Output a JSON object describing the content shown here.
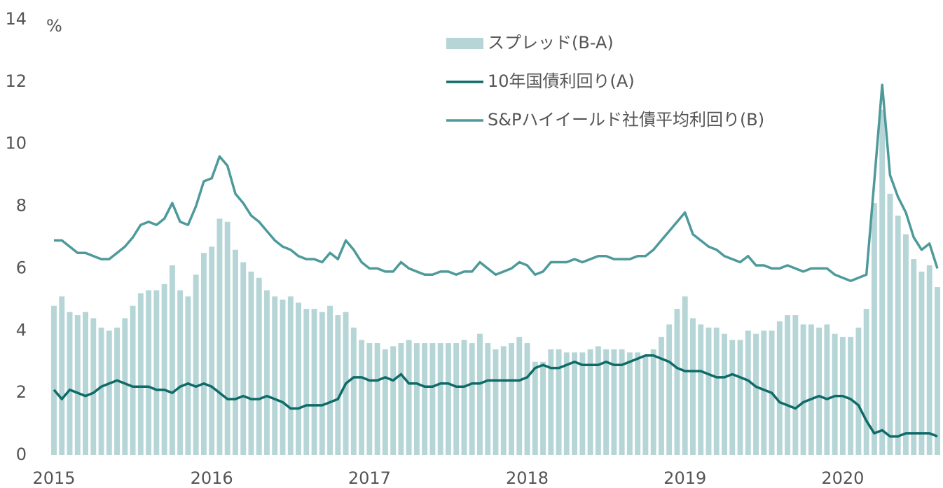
{
  "chart_data": {
    "type": "line",
    "y_label": "%",
    "x": [
      2015,
      2015.05,
      2015.1,
      2015.15,
      2015.2,
      2015.25,
      2015.3,
      2015.35,
      2015.4,
      2015.45,
      2015.5,
      2015.55,
      2015.6,
      2015.65,
      2015.7,
      2015.75,
      2015.8,
      2015.85,
      2015.9,
      2015.95,
      2016,
      2016.05,
      2016.1,
      2016.15,
      2016.2,
      2016.25,
      2016.3,
      2016.35,
      2016.4,
      2016.45,
      2016.5,
      2016.55,
      2016.6,
      2016.65,
      2016.7,
      2016.75,
      2016.8,
      2016.85,
      2016.9,
      2016.95,
      2017,
      2017.05,
      2017.1,
      2017.15,
      2017.2,
      2017.25,
      2017.3,
      2017.35,
      2017.4,
      2017.45,
      2017.5,
      2017.55,
      2017.6,
      2017.65,
      2017.7,
      2017.75,
      2017.8,
      2017.85,
      2017.9,
      2017.95,
      2018,
      2018.05,
      2018.1,
      2018.15,
      2018.2,
      2018.25,
      2018.3,
      2018.35,
      2018.4,
      2018.45,
      2018.5,
      2018.55,
      2018.6,
      2018.65,
      2018.7,
      2018.75,
      2018.8,
      2018.85,
      2018.9,
      2018.95,
      2019,
      2019.05,
      2019.1,
      2019.15,
      2019.2,
      2019.25,
      2019.3,
      2019.35,
      2019.4,
      2019.45,
      2019.5,
      2019.55,
      2019.6,
      2019.65,
      2019.7,
      2019.75,
      2019.8,
      2019.85,
      2019.9,
      2019.95,
      2020,
      2020.05,
      2020.1,
      2020.15,
      2020.2,
      2020.25,
      2020.3,
      2020.35,
      2020.4,
      2020.45,
      2020.5,
      2020.55,
      2020.6
    ],
    "series": [
      {
        "name": "スプレッド(B-A)",
        "color": "#b5d5d6",
        "kind": "bar",
        "values": [
          4.8,
          5.1,
          4.6,
          4.5,
          4.6,
          4.4,
          4.1,
          4.0,
          4.1,
          4.4,
          4.8,
          5.2,
          5.3,
          5.3,
          5.5,
          6.1,
          5.3,
          5.1,
          5.8,
          6.5,
          6.7,
          7.6,
          7.5,
          6.6,
          6.2,
          5.9,
          5.7,
          5.3,
          5.1,
          5.0,
          5.1,
          4.9,
          4.7,
          4.7,
          4.6,
          4.8,
          4.5,
          4.6,
          4.1,
          3.7,
          3.6,
          3.6,
          3.4,
          3.5,
          3.6,
          3.7,
          3.6,
          3.6,
          3.6,
          3.6,
          3.6,
          3.6,
          3.7,
          3.6,
          3.9,
          3.6,
          3.4,
          3.5,
          3.6,
          3.8,
          3.6,
          3.0,
          3.0,
          3.4,
          3.4,
          3.3,
          3.3,
          3.3,
          3.4,
          3.5,
          3.4,
          3.4,
          3.4,
          3.3,
          3.3,
          3.2,
          3.4,
          3.8,
          4.2,
          4.7,
          5.1,
          4.4,
          4.2,
          4.1,
          4.1,
          3.9,
          3.7,
          3.7,
          4.0,
          3.9,
          4.0,
          4.0,
          4.3,
          4.5,
          4.5,
          4.2,
          4.2,
          4.1,
          4.2,
          3.9,
          3.8,
          3.8,
          4.1,
          4.7,
          8.1,
          11.1,
          8.4,
          7.7,
          7.1,
          6.3,
          5.9,
          6.1,
          5.4
        ]
      },
      {
        "name": "10年国債利回り(A)",
        "color": "#0f6b68",
        "kind": "line",
        "values": [
          2.1,
          1.8,
          2.1,
          2.0,
          1.9,
          2.0,
          2.2,
          2.3,
          2.4,
          2.3,
          2.2,
          2.2,
          2.2,
          2.1,
          2.1,
          2.0,
          2.2,
          2.3,
          2.2,
          2.3,
          2.2,
          2.0,
          1.8,
          1.8,
          1.9,
          1.8,
          1.8,
          1.9,
          1.8,
          1.7,
          1.5,
          1.5,
          1.6,
          1.6,
          1.6,
          1.7,
          1.8,
          2.3,
          2.5,
          2.5,
          2.4,
          2.4,
          2.5,
          2.4,
          2.6,
          2.3,
          2.3,
          2.2,
          2.2,
          2.3,
          2.3,
          2.2,
          2.2,
          2.3,
          2.3,
          2.4,
          2.4,
          2.4,
          2.4,
          2.4,
          2.5,
          2.8,
          2.9,
          2.8,
          2.8,
          2.9,
          3.0,
          2.9,
          2.9,
          2.9,
          3.0,
          2.9,
          2.9,
          3.0,
          3.1,
          3.2,
          3.2,
          3.1,
          3.0,
          2.8,
          2.7,
          2.7,
          2.7,
          2.6,
          2.5,
          2.5,
          2.6,
          2.5,
          2.4,
          2.2,
          2.1,
          2.0,
          1.7,
          1.6,
          1.5,
          1.7,
          1.8,
          1.9,
          1.8,
          1.9,
          1.9,
          1.8,
          1.6,
          1.1,
          0.7,
          0.8,
          0.6,
          0.6,
          0.7,
          0.7,
          0.7,
          0.7,
          0.6
        ]
      },
      {
        "name": "S&Pハイイールド社債平均利回り(B)",
        "color": "#4e9a9b",
        "kind": "line",
        "values": [
          6.9,
          6.9,
          6.7,
          6.5,
          6.5,
          6.4,
          6.3,
          6.3,
          6.5,
          6.7,
          7.0,
          7.4,
          7.5,
          7.4,
          7.6,
          8.1,
          7.5,
          7.4,
          8.0,
          8.8,
          8.9,
          9.6,
          9.3,
          8.4,
          8.1,
          7.7,
          7.5,
          7.2,
          6.9,
          6.7,
          6.6,
          6.4,
          6.3,
          6.3,
          6.2,
          6.5,
          6.3,
          6.9,
          6.6,
          6.2,
          6.0,
          6.0,
          5.9,
          5.9,
          6.2,
          6.0,
          5.9,
          5.8,
          5.8,
          5.9,
          5.9,
          5.8,
          5.9,
          5.9,
          6.2,
          6.0,
          5.8,
          5.9,
          6.0,
          6.2,
          6.1,
          5.8,
          5.9,
          6.2,
          6.2,
          6.2,
          6.3,
          6.2,
          6.3,
          6.4,
          6.4,
          6.3,
          6.3,
          6.3,
          6.4,
          6.4,
          6.6,
          6.9,
          7.2,
          7.5,
          7.8,
          7.1,
          6.9,
          6.7,
          6.6,
          6.4,
          6.3,
          6.2,
          6.4,
          6.1,
          6.1,
          6.0,
          6.0,
          6.1,
          6.0,
          5.9,
          6.0,
          6.0,
          6.0,
          5.8,
          5.7,
          5.6,
          5.7,
          5.8,
          8.8,
          11.9,
          9.0,
          8.3,
          7.8,
          7.0,
          6.6,
          6.8,
          6.0
        ]
      }
    ],
    "xlim": [
      2015,
      2020.6
    ],
    "xticks": [
      2015,
      2016,
      2017,
      2018,
      2019,
      2020
    ],
    "ylim": [
      0,
      14
    ],
    "yticks": [
      0,
      2,
      4,
      6,
      8,
      10,
      12,
      14
    ],
    "grid": false,
    "legend": "top-right"
  }
}
